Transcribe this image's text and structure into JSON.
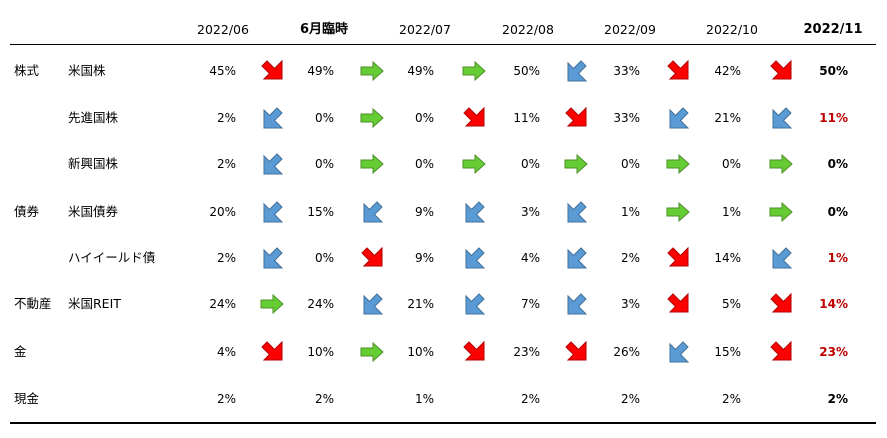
{
  "header": {
    "columns": [
      {
        "label": "2022/06",
        "bold": false
      },
      {
        "label": "6月臨時",
        "bold": true
      },
      {
        "label": "2022/07",
        "bold": false
      },
      {
        "label": "2022/08",
        "bold": false
      },
      {
        "label": "2022/09",
        "bold": false
      },
      {
        "label": "2022/10",
        "bold": false
      },
      {
        "label": "2022/11",
        "bold": true
      }
    ]
  },
  "colors": {
    "up": "#ff0000",
    "down": "#5b9bd5",
    "flat": "#66cc33",
    "highlight_value": "#c00000",
    "rule": "#000000"
  },
  "rows": [
    {
      "category": "株式",
      "name": "米国株",
      "values": [
        "45%",
        "49%",
        "49%",
        "50%",
        "33%",
        "42%",
        "50%"
      ],
      "arrows": [
        "up",
        "flat",
        "flat",
        "down",
        "up",
        "up"
      ],
      "last_red": false
    },
    {
      "category": "",
      "name": "先進国株",
      "values": [
        "2%",
        "0%",
        "0%",
        "11%",
        "33%",
        "21%",
        "11%"
      ],
      "arrows": [
        "down",
        "flat",
        "up",
        "up",
        "down",
        "down"
      ],
      "last_red": true
    },
    {
      "category": "",
      "name": "新興国株",
      "values": [
        "2%",
        "0%",
        "0%",
        "0%",
        "0%",
        "0%",
        "0%"
      ],
      "arrows": [
        "down",
        "flat",
        "flat",
        "flat",
        "flat",
        "flat"
      ],
      "last_red": false
    },
    {
      "category": "債券",
      "name": "米国債券",
      "values": [
        "20%",
        "15%",
        "9%",
        "3%",
        "1%",
        "1%",
        "0%"
      ],
      "arrows": [
        "down",
        "down",
        "down",
        "down",
        "flat",
        "flat"
      ],
      "last_red": false
    },
    {
      "category": "",
      "name": "ハイイールド債",
      "values": [
        "2%",
        "0%",
        "9%",
        "4%",
        "2%",
        "14%",
        "1%"
      ],
      "arrows": [
        "down",
        "up",
        "down",
        "down",
        "up",
        "down"
      ],
      "last_red": true
    },
    {
      "category": "不動産",
      "name": "米国REIT",
      "values": [
        "24%",
        "24%",
        "21%",
        "7%",
        "3%",
        "5%",
        "14%"
      ],
      "arrows": [
        "flat",
        "down",
        "down",
        "down",
        "up",
        "up"
      ],
      "last_red": true
    },
    {
      "category": "金",
      "name": "",
      "values": [
        "4%",
        "10%",
        "10%",
        "23%",
        "26%",
        "15%",
        "23%"
      ],
      "arrows": [
        "up",
        "flat",
        "up",
        "up",
        "down",
        "up"
      ],
      "last_red": true
    },
    {
      "category": "現金",
      "name": "",
      "values": [
        "2%",
        "2%",
        "1%",
        "2%",
        "2%",
        "2%",
        "2%"
      ],
      "arrows": [],
      "last_red": false
    }
  ]
}
